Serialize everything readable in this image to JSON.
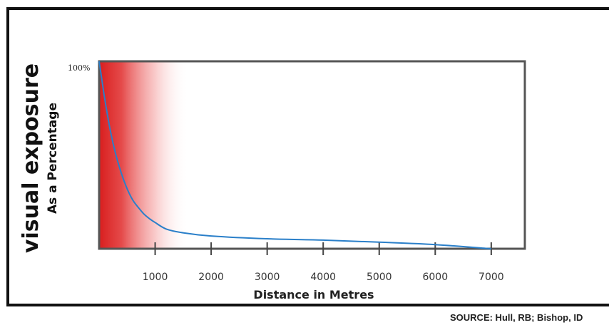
{
  "chart_data": {
    "type": "line",
    "title": "",
    "ylabel": "visual exposure",
    "ylabel_sub": "As a Percentage",
    "xlabel": "Distance in Metres",
    "y_top_tick_label": "100%",
    "x_ticks": [
      1000,
      2000,
      3000,
      4000,
      5000,
      6000,
      7000
    ],
    "x_tick_labels": [
      "1000",
      "2000",
      "3000",
      "4000",
      "5000",
      "6000",
      "7000"
    ],
    "xlim": [
      0,
      7600
    ],
    "ylim": [
      0,
      100
    ],
    "grid": false,
    "series": [
      {
        "color": "#2a7fc9",
        "x": [
          0,
          50,
          100,
          200,
          300,
          400,
          500,
          600,
          700,
          800,
          900,
          1000,
          1200,
          1500,
          2000,
          3000,
          4000,
          5000,
          6000,
          7000
        ],
        "y": [
          100,
          90,
          80,
          63,
          50,
          40,
          32,
          26,
          22,
          18.5,
          16,
          14,
          10.5,
          8.5,
          6.8,
          5.3,
          4.6,
          3.5,
          2.2,
          0
        ]
      }
    ],
    "red_gradient": {
      "from": 0,
      "to": 1600,
      "color": "#d81e1e"
    }
  },
  "source_text": "SOURCE: Hull, RB; Bishop, ID"
}
